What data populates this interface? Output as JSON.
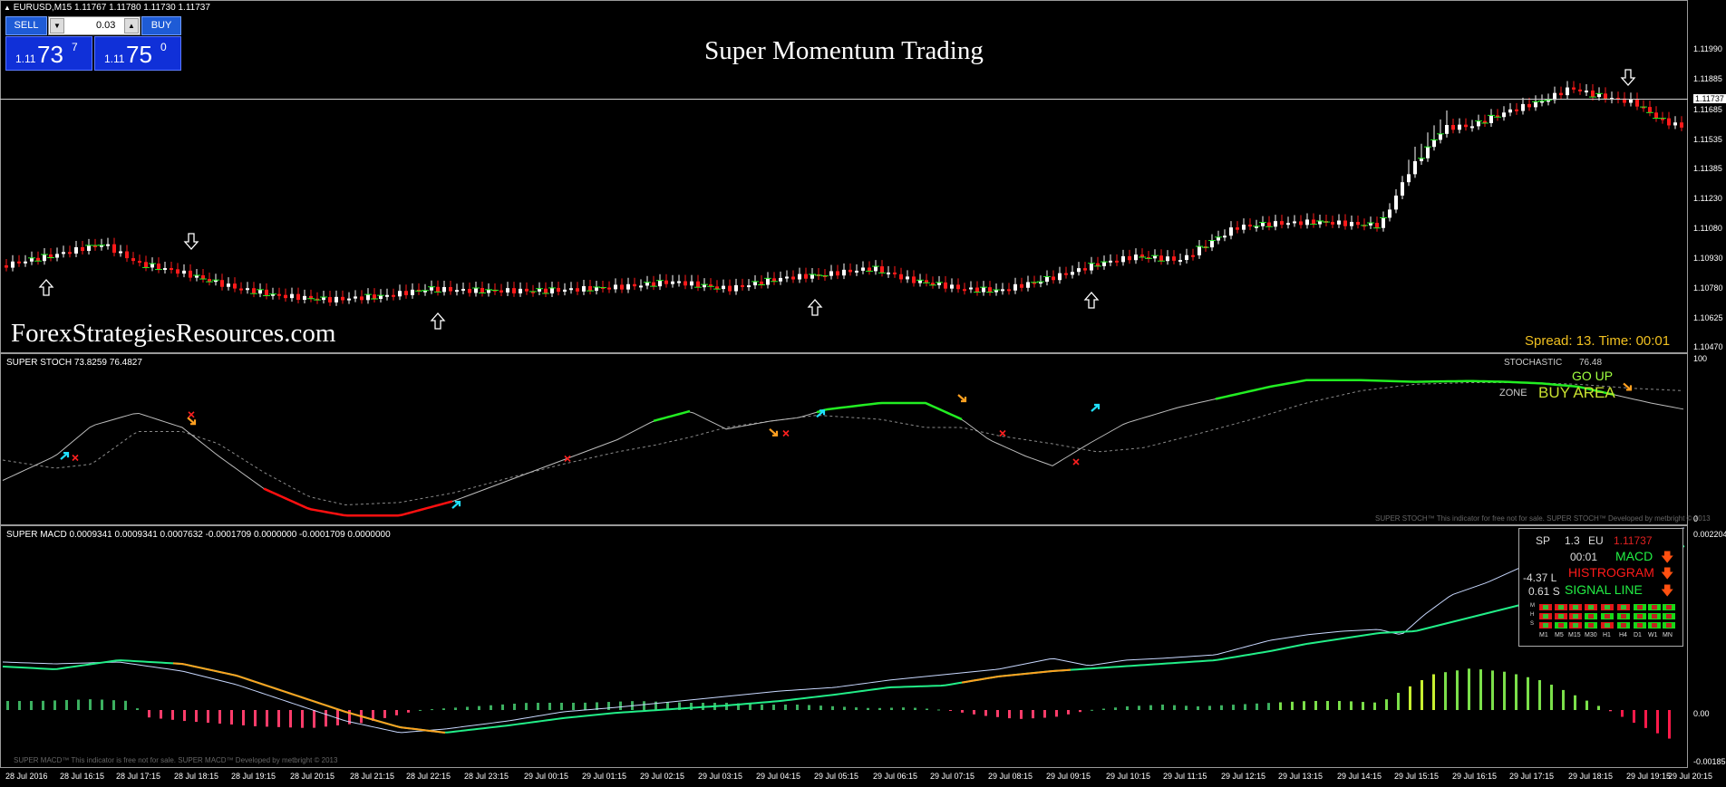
{
  "symbol_line": "EURUSD,M15  1.11767 1.11780 1.11730 1.11737",
  "trade": {
    "sell_label": "SELL",
    "buy_label": "BUY",
    "lot_value": "0.03",
    "lot_down": "▼",
    "lot_up": "▲",
    "bid_prefix": "1.11",
    "bid_big": "73",
    "bid_sup": "7",
    "ask_prefix": "1.11",
    "ask_big": "75",
    "ask_sup": "0"
  },
  "chart_title": "Super Momentum Trading",
  "watermark": "ForexStrategiesResources.com",
  "spread_text": "Spread: 13. Time: 00:01",
  "price_axis": {
    "labels": [
      "1.11990",
      "1.11885",
      "1.11737",
      "1.11685",
      "1.11535",
      "1.11385",
      "1.11230",
      "1.11080",
      "1.10930",
      "1.10780",
      "1.10625",
      "1.10470"
    ],
    "current": "1.11737"
  },
  "stoch": {
    "label": "SUPER STOCH 73.8259 76.4827",
    "axis_top": "100",
    "axis_bottom": "0",
    "stochastic_label": "STOCHASTIC",
    "stochastic_value": "76.48",
    "go_up": "GO UP",
    "zone_label": "ZONE",
    "zone_value": "BUY AREA",
    "credit": "SUPER STOCH™ This indicator for free not for sale. SUPER STOCH™ Developed by metbright © 2013"
  },
  "macd": {
    "label": "SUPER MACD 0.0009341 0.0009341 0.0007632 -0.0001709 0.0000000 -0.0001709 0.0000000",
    "axis_top": "0.002204",
    "axis_zero": "0.00",
    "axis_bottom": "-0.001858",
    "credit": "SUPER MACD™ This indicator is free not for sale. SUPER MACD™ Developed by metbright © 2013",
    "panel": {
      "sp": "SP",
      "sp_val": "1.3",
      "eu": "EU",
      "price": "1.11737",
      "time": "00:01",
      "macd": "MACD",
      "histogram": "HISTROGRAM",
      "signal": "SIGNAL LINE",
      "l_val": "-4.37 L",
      "s_val": "0.61 S",
      "rows": [
        "M",
        "H",
        "S"
      ],
      "timeframes": [
        "M1",
        "M5",
        "M15",
        "M30",
        "H1",
        "H4",
        "D1",
        "W1",
        "MN"
      ]
    }
  },
  "time_axis": [
    "28 Jul 2016",
    "28 Jul 16:15",
    "28 Jul 17:15",
    "28 Jul 18:15",
    "28 Jul 19:15",
    "28 Jul 20:15",
    "28 Jul 21:15",
    "28 Jul 22:15",
    "28 Jul 23:15",
    "29 Jul 00:15",
    "29 Jul 01:15",
    "29 Jul 02:15",
    "29 Jul 03:15",
    "29 Jul 04:15",
    "29 Jul 05:15",
    "29 Jul 06:15",
    "29 Jul 07:15",
    "29 Jul 08:15",
    "29 Jul 09:15",
    "29 Jul 10:15",
    "29 Jul 11:15",
    "29 Jul 12:15",
    "29 Jul 13:15",
    "29 Jul 14:15",
    "29 Jul 15:15",
    "29 Jul 16:15",
    "29 Jul 17:15",
    "29 Jul 18:15",
    "29 Jul 19:15",
    "29 Jul 20:15"
  ],
  "colors": {
    "bull": "#ffffff",
    "bear": "#ff1a1a",
    "stoch_line": "#bdbdbd",
    "stoch_green": "#22ee22",
    "stoch_red": "#ff1010",
    "macd_signal": "#22ee88",
    "macd_main": "#c8d8ff",
    "macd_orange": "#ffa020"
  }
}
